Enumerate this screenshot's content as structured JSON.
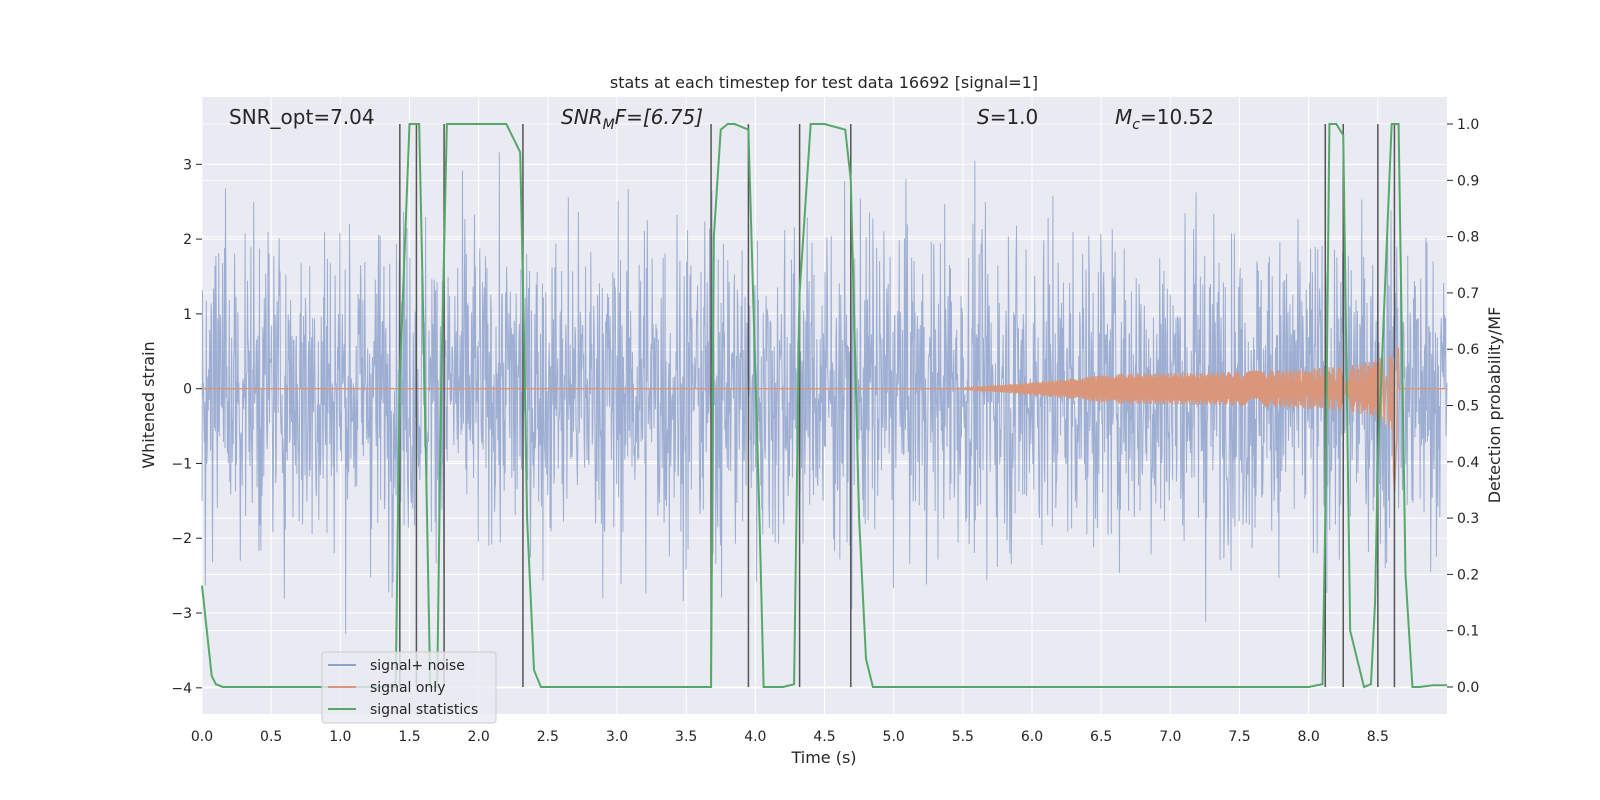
{
  "chart_data": {
    "type": "line",
    "title": "stats at each timestep for test data 16692 [signal=1]",
    "xlabel": "Time (s)",
    "ylabel_left": "Whitened strain",
    "ylabel_right": "Detection probability/MF",
    "xlim": [
      0.0,
      9.0
    ],
    "ylim_left": [
      -4.35,
      3.9
    ],
    "ylim_right": [
      -0.048,
      1.048
    ],
    "x_ticks": [
      "0.0",
      "0.5",
      "1.0",
      "1.5",
      "2.0",
      "2.5",
      "3.0",
      "3.5",
      "4.0",
      "4.5",
      "5.0",
      "5.5",
      "6.0",
      "6.5",
      "7.0",
      "7.5",
      "8.0",
      "8.5"
    ],
    "y_left_ticks": [
      "3",
      "2",
      "1",
      "0",
      "−1",
      "−2",
      "−3",
      "−4"
    ],
    "y_right_ticks": [
      "1.0",
      "0.9",
      "0.8",
      "0.7",
      "0.6",
      "0.5",
      "0.4",
      "0.3",
      "0.2",
      "0.1",
      "0.0"
    ],
    "annotations": {
      "snr_opt": "SNR_opt=7.04",
      "snr_mf_main": "SNR",
      "snr_mf_sub": "M",
      "snr_mf_rest": "F=[6.75]",
      "s_italic": "S",
      "s_rest": "=1.0",
      "mc_main": "M",
      "mc_sub": "c",
      "mc_rest": "=10.52"
    },
    "legend": [
      "signal+ noise",
      "signal only",
      "signal statistics"
    ],
    "series": [
      {
        "name": "signal+ noise",
        "color": "#8fa3cc",
        "kind": "noise",
        "amplitude_std": 1.05,
        "range": [
          -4.0,
          3.5
        ]
      },
      {
        "name": "signal only",
        "color": "#d9967a",
        "kind": "chirp",
        "x_start": 5.5,
        "x_merger": 8.62,
        "peak_amplitude": 0.95,
        "trough_amplitude": -1.45
      },
      {
        "name": "signal statistics",
        "color": "#55a868",
        "x": [
          0.0,
          0.07,
          0.1,
          0.15,
          0.2,
          0.25,
          0.3,
          0.5,
          1.0,
          1.3,
          1.4,
          1.43,
          1.5,
          1.57,
          1.6,
          1.65,
          1.7,
          1.73,
          1.77,
          1.83,
          2.0,
          2.2,
          2.3,
          2.33,
          2.35,
          2.4,
          2.45,
          2.5,
          3.0,
          3.5,
          3.68,
          3.7,
          3.75,
          3.8,
          3.85,
          3.95,
          4.03,
          4.06,
          4.1,
          4.2,
          4.28,
          4.32,
          4.4,
          4.5,
          4.65,
          4.69,
          4.75,
          4.8,
          4.85,
          5.0,
          6.0,
          7.0,
          7.5,
          8.0,
          8.1,
          8.12,
          8.15,
          8.2,
          8.25,
          8.3,
          8.35,
          8.4,
          8.45,
          8.48,
          8.5,
          8.55,
          8.6,
          8.65,
          8.7,
          8.75,
          8.8,
          8.9,
          9.0
        ],
        "y": [
          0.18,
          0.02,
          0.005,
          0.0,
          0.0,
          0.0,
          0.0,
          0.0,
          0.0,
          0.0,
          0.0,
          0.55,
          1.0,
          1.0,
          0.65,
          0.0,
          0.0,
          0.55,
          1.0,
          1.0,
          1.0,
          1.0,
          0.95,
          0.6,
          0.3,
          0.03,
          0.0,
          0.0,
          0.0,
          0.0,
          0.0,
          0.8,
          0.99,
          1.0,
          1.0,
          0.99,
          0.3,
          0.0,
          0.0,
          0.0,
          0.005,
          0.7,
          1.0,
          1.0,
          0.99,
          0.9,
          0.3,
          0.05,
          0.0,
          0.0,
          0.0,
          0.0,
          0.0,
          0.0,
          0.005,
          0.3,
          1.0,
          1.0,
          0.98,
          0.1,
          0.05,
          0.0,
          0.005,
          0.15,
          0.4,
          0.7,
          1.0,
          1.0,
          0.2,
          0.0,
          0.0,
          0.003,
          0.003
        ]
      }
    ],
    "vertical_lines_x": [
      1.43,
      1.55,
      1.75,
      2.32,
      3.68,
      3.95,
      4.32,
      4.69,
      8.12,
      8.25,
      8.5,
      8.62
    ],
    "vertical_lines_color": "#555555",
    "grid": true,
    "legend_position": "lower-left"
  }
}
